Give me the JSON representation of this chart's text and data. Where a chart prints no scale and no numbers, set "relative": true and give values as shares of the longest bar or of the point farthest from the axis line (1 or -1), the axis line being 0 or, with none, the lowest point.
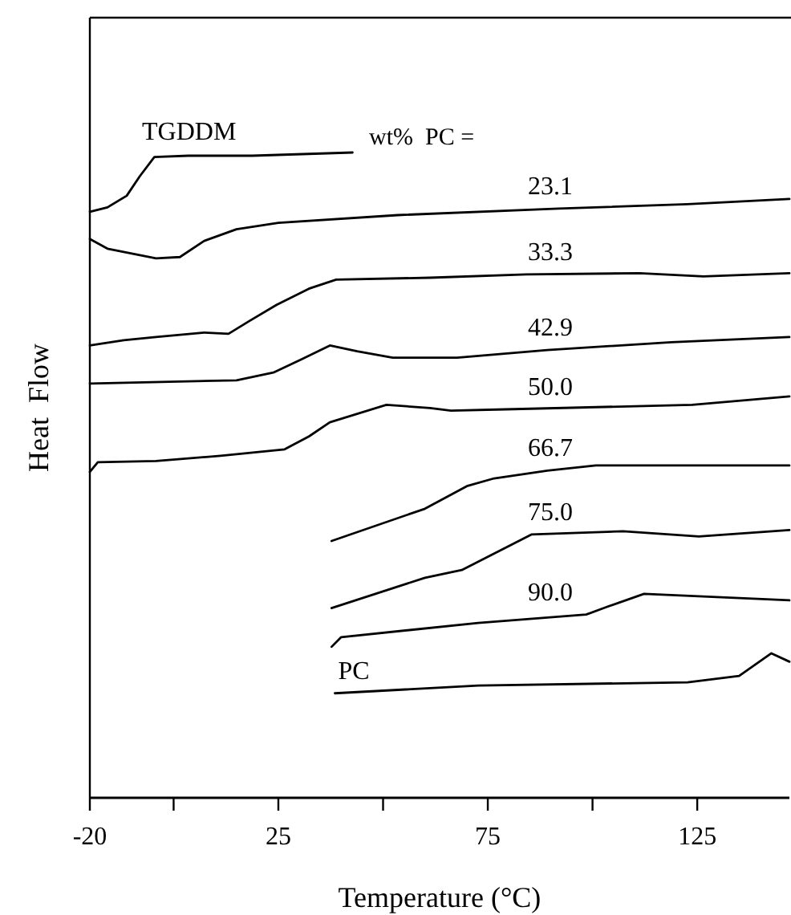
{
  "chart_data": {
    "type": "line",
    "relative": true,
    "xlabel": "Temperature (°C)",
    "ylabel": "Heat  Flow",
    "xlim": [
      -20,
      147
    ],
    "xticks": [
      -20,
      {
        "value": 0,
        "label": null
      },
      25,
      {
        "value": 50,
        "label": null
      },
      75,
      {
        "value": 100,
        "label": null
      },
      125
    ],
    "grid": false,
    "marker": "none",
    "line_style": "solid",
    "annotations": [
      "wt%  PC ="
    ],
    "series": [
      {
        "name": "TGDDM",
        "color": "#000000",
        "x": [
          -20,
          -15.8,
          -11.2,
          -8.1,
          -4.6,
          3.5,
          18.8,
          42.7
        ],
        "values": [
          0.908,
          0.915,
          0.933,
          0.963,
          0.993,
          0.995,
          0.995,
          1.0
        ]
      },
      {
        "name": "23.1",
        "color": "#000000",
        "x": [
          -20,
          -15.8,
          -4.2,
          1.5,
          7.3,
          15,
          25,
          53.5,
          91.9,
          122.7,
          147
        ],
        "values": [
          0.866,
          0.851,
          0.836,
          0.838,
          0.863,
          0.881,
          0.891,
          0.903,
          0.913,
          0.92,
          0.928
        ]
      },
      {
        "name": "33.3",
        "color": "#000000",
        "x": [
          -20,
          -11.9,
          -4.2,
          7.3,
          13.1,
          18.1,
          24.6,
          32.3,
          38.8,
          61.2,
          84.2,
          111.2,
          126.5,
          147
        ],
        "values": [
          0.701,
          0.709,
          0.714,
          0.721,
          0.719,
          0.739,
          0.764,
          0.789,
          0.803,
          0.806,
          0.811,
          0.813,
          0.808,
          0.813
        ]
      },
      {
        "name": "42.9",
        "color": "#000000",
        "x": [
          -20,
          15,
          23.8,
          30.4,
          37.3,
          43.8,
          52.3,
          67.7,
          89.2,
          118.8,
          147
        ],
        "values": [
          0.642,
          0.647,
          0.659,
          0.679,
          0.701,
          0.692,
          0.682,
          0.682,
          0.694,
          0.706,
          0.714
        ]
      },
      {
        "name": "50.0",
        "color": "#000000",
        "x": [
          -20,
          -18.1,
          -4.2,
          11.2,
          26.5,
          32.3,
          37.3,
          50.8,
          61.2,
          66.2,
          79.2,
          123.8,
          147
        ],
        "values": [
          0.505,
          0.52,
          0.522,
          0.53,
          0.54,
          0.56,
          0.582,
          0.609,
          0.604,
          0.6,
          0.602,
          0.609,
          0.622
        ]
      },
      {
        "name": "66.7",
        "color": "#000000",
        "x": [
          37.7,
          60,
          70,
          76.5,
          89.2,
          100.8,
          147
        ],
        "values": [
          0.398,
          0.448,
          0.483,
          0.495,
          0.507,
          0.515,
          0.515
        ]
      },
      {
        "name": "75.0",
        "color": "#000000",
        "x": [
          37.7,
          60,
          68.8,
          85.4,
          107.3,
          125.4,
          147
        ],
        "values": [
          0.294,
          0.341,
          0.353,
          0.408,
          0.413,
          0.405,
          0.415
        ]
      },
      {
        "name": "90.0",
        "color": "#000000",
        "x": [
          37.7,
          40,
          72.7,
          98.5,
          103.5,
          112.3,
          147
        ],
        "values": [
          0.234,
          0.249,
          0.271,
          0.284,
          0.296,
          0.316,
          0.306
        ]
      },
      {
        "name": "PC",
        "color": "#000000",
        "x": [
          38.5,
          72.7,
          122.7,
          135,
          142.7,
          147
        ],
        "values": [
          0.162,
          0.174,
          0.179,
          0.189,
          0.224,
          0.211
        ]
      }
    ]
  }
}
